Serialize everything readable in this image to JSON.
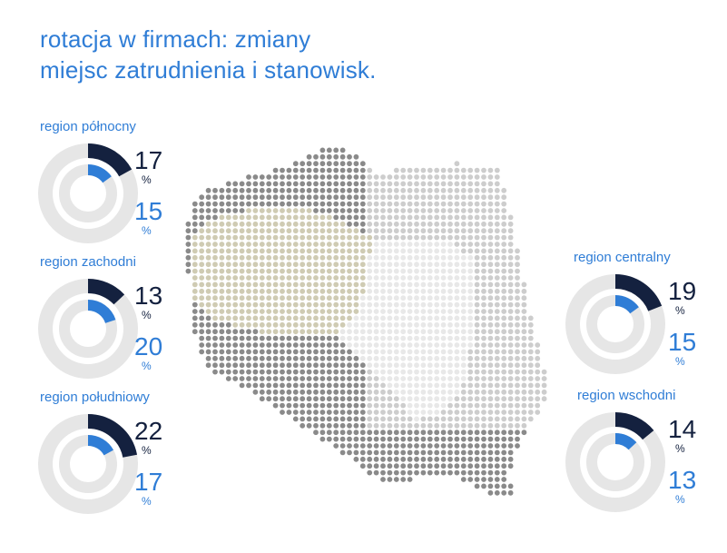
{
  "title": {
    "line1": "rotacja w firmach: zmiany",
    "line2": "miejsc zatrudnienia i stanowisk."
  },
  "colors": {
    "dark": "#14213f",
    "blue": "#2f7dd6",
    "ring_bg": "#e6e6e6",
    "map_dark": "#8a8a8a",
    "map_light": "#cdcdcd",
    "map_olive": "#cfcbb3",
    "map_center": "#e8e8e8"
  },
  "percent_sign": "%",
  "chart_data": {
    "type": "radial-bar",
    "max": 100,
    "regions": [
      {
        "label": "region północny",
        "job_change": 17,
        "position_change": 15
      },
      {
        "label": "region zachodni",
        "job_change": 13,
        "position_change": 20
      },
      {
        "label": "region południowy",
        "job_change": 22,
        "position_change": 17
      },
      {
        "label": "region centralny",
        "job_change": 19,
        "position_change": 15
      },
      {
        "label": "region wschodni",
        "job_change": 14,
        "position_change": 13
      }
    ]
  }
}
